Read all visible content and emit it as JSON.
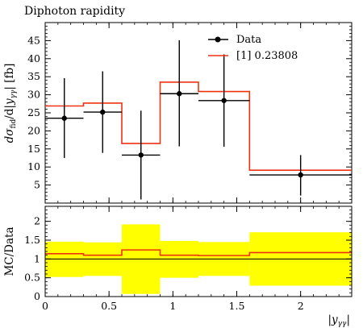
{
  "chart_data": [
    {
      "type": "line",
      "panel": "main",
      "title": "Diphoton rapidity",
      "ylabel": "dσ_fid/d|y_γγ| [fb]",
      "ylim": [
        0,
        50
      ],
      "yticks": [
        5,
        10,
        15,
        20,
        25,
        30,
        35,
        40,
        45
      ],
      "bins": [
        [
          0,
          0.3
        ],
        [
          0.3,
          0.6
        ],
        [
          0.6,
          0.9
        ],
        [
          0.9,
          1.2
        ],
        [
          1.2,
          1.6
        ],
        [
          1.6,
          2.4
        ]
      ],
      "series": [
        {
          "name": "Data",
          "style": "points-with-errors",
          "color": "#000000",
          "x": [
            0.15,
            0.45,
            0.75,
            1.05,
            1.4,
            2.0
          ],
          "xerr": [
            0.15,
            0.15,
            0.15,
            0.15,
            0.2,
            0.4
          ],
          "values": [
            23.5,
            25.2,
            13.3,
            30.3,
            28.4,
            7.8
          ],
          "err_low": [
            11.0,
            11.3,
            12.3,
            14.6,
            12.8,
            5.7
          ],
          "err_high": [
            11.1,
            11.3,
            12.3,
            14.8,
            12.8,
            5.5
          ]
        },
        {
          "name": "[1] 0.23808",
          "style": "step-histogram",
          "color": "#ee3311",
          "values": [
            26.9,
            27.7,
            16.5,
            33.5,
            30.9,
            9.1
          ]
        }
      ]
    },
    {
      "type": "area",
      "panel": "ratio",
      "ylabel": "MC/Data",
      "xlabel": "|y_γγ|",
      "ylim": [
        0,
        2.4
      ],
      "xlim": [
        0,
        2.4
      ],
      "yticks": [
        0,
        0.5,
        1,
        1.5,
        2
      ],
      "xticks": [
        0,
        0.5,
        1,
        1.5,
        2
      ],
      "bins": [
        [
          0,
          0.3
        ],
        [
          0.3,
          0.6
        ],
        [
          0.6,
          0.9
        ],
        [
          0.9,
          1.2
        ],
        [
          1.2,
          1.6
        ],
        [
          1.6,
          2.4
        ]
      ],
      "band": {
        "color": "#ffff00",
        "low": [
          0.52,
          0.55,
          0.07,
          0.5,
          0.55,
          0.29
        ],
        "high": [
          1.46,
          1.44,
          1.92,
          1.48,
          1.45,
          1.71
        ]
      },
      "series": [
        {
          "name": "[1] 0.23808",
          "color": "#ee3311",
          "values": [
            1.14,
            1.1,
            1.24,
            1.1,
            1.09,
            1.17
          ]
        }
      ],
      "reference_line": 1.0
    }
  ]
}
